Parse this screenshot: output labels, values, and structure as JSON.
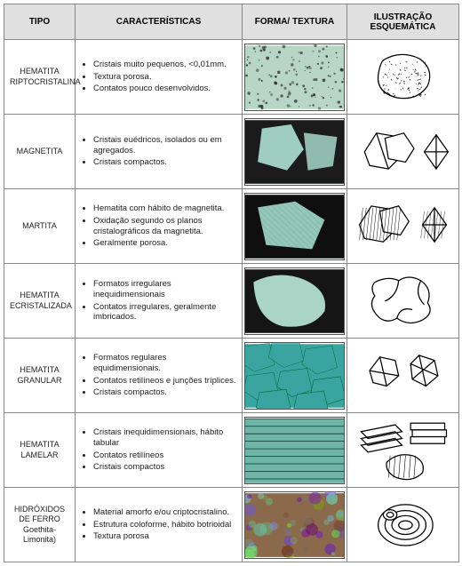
{
  "header": {
    "tipo": "TIPO",
    "car": "CARACTERÍSTICAS",
    "foto": "FORMA/ TEXTURA",
    "ilu": "ILUSTRAÇÃO ESQUEMÁTICA"
  },
  "rows": [
    {
      "tipo_line1": "HEMATITA",
      "tipo_line2": "RIPTOCRISTALINA",
      "bullets": [
        "Cristais muito pequenos, <0,01mm.",
        "Textura porosa.",
        "Contatos pouco desenvolvidos."
      ],
      "photo_bg": "#b7d6c5",
      "photo_accent": "#2a2a2a",
      "ilu": "cripto"
    },
    {
      "tipo_line1": "MAGNETITA",
      "tipo_line2": "",
      "bullets": [
        "Cristais euédricos, isolados ou em agregados.",
        "Cristais compactos."
      ],
      "photo_bg": "#9fcdc0",
      "photo_accent": "#273331",
      "ilu": "magnetita"
    },
    {
      "tipo_line1": "MARTITA",
      "tipo_line2": "",
      "bullets": [
        "Hematita com hábito de magnetita.",
        "Oxidação segundo os planos cristalográficos da magnetita.",
        "Geralmente porosa."
      ],
      "photo_bg": "#94c7b9",
      "photo_accent": "#2b2b2b",
      "ilu": "martita"
    },
    {
      "tipo_line1": "HEMATITA",
      "tipo_line2": "ECRISTALIZADA",
      "bullets": [
        "Formatos irregulares inequidimensionais",
        "Contatos irregulares, geralmente imbricados."
      ],
      "photo_bg": "#a9d4c6",
      "photo_accent": "#1f2a27",
      "ilu": "recrist"
    },
    {
      "tipo_line1": "HEMATITA",
      "tipo_line2": "GRANULAR",
      "bullets": [
        "Formatos regulares equidimensionais.",
        "Contatos retilíneos e junções tríplices.",
        "Cristais compactos."
      ],
      "photo_bg": "#3aa5a0",
      "photo_accent": "#0c3532",
      "ilu": "granular"
    },
    {
      "tipo_line1": "HEMATITA",
      "tipo_line2": "LAMELAR",
      "bullets": [
        "Cristais inequidimensionais, hábito tabular",
        "Contatos retilíneos",
        "Cristais compactos"
      ],
      "photo_bg": "#6fb5a7",
      "photo_accent": "#1d2a27",
      "ilu": "lamelar"
    },
    {
      "tipo_line1": "HIDRÓXIDOS",
      "tipo_line2": "DE FERRO",
      "tipo_line3": "Goethita-Limonita)",
      "bullets": [
        "Material amorfo e/ou criptocristalino.",
        "Estrutura coloforme, hábito botrioidal",
        "Textura porosa"
      ],
      "photo_bg": "#8a6a4a",
      "photo_accent": "#3a2a1a",
      "ilu": "hidroxidos"
    }
  ],
  "colors": {
    "header_bg": "#e0e0e0",
    "border": "#888888",
    "text": "#222222",
    "stroke": "#000000"
  }
}
